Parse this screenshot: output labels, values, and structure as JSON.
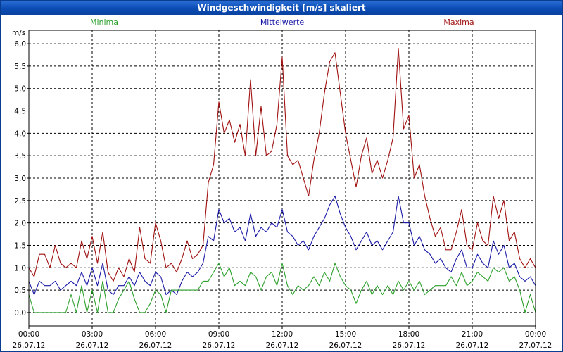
{
  "window": {
    "title": "Windgeschwindigkeit [m/s] skaliert"
  },
  "chart_data": {
    "type": "line",
    "title": "Windgeschwindigkeit [m/s] skaliert",
    "ylabel": "m/s",
    "xlabel": "",
    "ylim": [
      -0.3,
      6.3
    ],
    "xlim": [
      0,
      24
    ],
    "grid": true,
    "y_ticks": [
      "0,0",
      "0,5",
      "1,0",
      "1,5",
      "2,0",
      "2,5",
      "3,0",
      "3,5",
      "4,0",
      "4,5",
      "5,0",
      "5,5",
      "6,0"
    ],
    "y_tick_values": [
      0,
      0.5,
      1,
      1.5,
      2,
      2.5,
      3,
      3.5,
      4,
      4.5,
      5,
      5.5,
      6
    ],
    "x_ticks": [
      {
        "time": "00:00",
        "date": "26.07.12"
      },
      {
        "time": "03:00",
        "date": "26.07.12"
      },
      {
        "time": "06:00",
        "date": "26.07.12"
      },
      {
        "time": "09:00",
        "date": "26.07.12"
      },
      {
        "time": "12:00",
        "date": "26.07.12"
      },
      {
        "time": "15:00",
        "date": "26.07.12"
      },
      {
        "time": "18:00",
        "date": "26.07.12"
      },
      {
        "time": "21:00",
        "date": "26.07.12"
      },
      {
        "time": "00:00",
        "date": "27.07.12"
      }
    ],
    "x_tick_hours": [
      0,
      3,
      6,
      9,
      12,
      15,
      18,
      21,
      24
    ],
    "legend": [
      {
        "name": "Minima",
        "color": "#2ca02c"
      },
      {
        "name": "Mittelwerte",
        "color": "#1a1aa6"
      },
      {
        "name": "Maxima",
        "color": "#a01010"
      }
    ],
    "series": [
      {
        "name": "Maxima",
        "color": "#a01010",
        "points": [
          [
            0,
            1.0
          ],
          [
            0.25,
            0.8
          ],
          [
            0.5,
            1.3
          ],
          [
            0.75,
            1.3
          ],
          [
            1,
            1.0
          ],
          [
            1.25,
            1.5
          ],
          [
            1.5,
            1.1
          ],
          [
            1.75,
            1.0
          ],
          [
            2,
            1.1
          ],
          [
            2.25,
            1.0
          ],
          [
            2.5,
            1.6
          ],
          [
            2.75,
            1.2
          ],
          [
            3,
            1.7
          ],
          [
            3.25,
            1.1
          ],
          [
            3.5,
            1.8
          ],
          [
            3.75,
            0.9
          ],
          [
            4,
            0.7
          ],
          [
            4.25,
            1.0
          ],
          [
            4.5,
            0.8
          ],
          [
            4.75,
            1.2
          ],
          [
            5,
            0.9
          ],
          [
            5.25,
            1.9
          ],
          [
            5.5,
            1.2
          ],
          [
            5.75,
            1.1
          ],
          [
            6,
            2.0
          ],
          [
            6.25,
            1.6
          ],
          [
            6.5,
            1.0
          ],
          [
            6.75,
            1.1
          ],
          [
            7,
            0.9
          ],
          [
            7.25,
            1.2
          ],
          [
            7.5,
            1.6
          ],
          [
            7.75,
            1.2
          ],
          [
            8,
            1.3
          ],
          [
            8.25,
            1.5
          ],
          [
            8.5,
            2.9
          ],
          [
            8.75,
            3.3
          ],
          [
            9,
            4.7
          ],
          [
            9.25,
            4.0
          ],
          [
            9.5,
            4.3
          ],
          [
            9.75,
            3.8
          ],
          [
            10,
            4.2
          ],
          [
            10.25,
            3.5
          ],
          [
            10.5,
            5.2
          ],
          [
            10.75,
            3.5
          ],
          [
            11,
            4.6
          ],
          [
            11.25,
            3.5
          ],
          [
            11.5,
            3.6
          ],
          [
            11.75,
            4.2
          ],
          [
            12,
            5.7
          ],
          [
            12.25,
            3.5
          ],
          [
            12.5,
            3.3
          ],
          [
            12.75,
            3.4
          ],
          [
            13,
            3.0
          ],
          [
            13.25,
            2.6
          ],
          [
            13.5,
            3.4
          ],
          [
            13.75,
            4.0
          ],
          [
            14,
            4.9
          ],
          [
            14.25,
            5.6
          ],
          [
            14.5,
            5.8
          ],
          [
            14.75,
            4.9
          ],
          [
            15,
            4.0
          ],
          [
            15.25,
            3.4
          ],
          [
            15.5,
            2.8
          ],
          [
            15.75,
            3.5
          ],
          [
            16,
            3.9
          ],
          [
            16.25,
            3.1
          ],
          [
            16.5,
            3.4
          ],
          [
            16.75,
            3.0
          ],
          [
            17,
            3.4
          ],
          [
            17.25,
            3.9
          ],
          [
            17.5,
            5.9
          ],
          [
            17.75,
            4.1
          ],
          [
            18,
            4.4
          ],
          [
            18.25,
            3.0
          ],
          [
            18.5,
            3.3
          ],
          [
            18.75,
            2.6
          ],
          [
            19,
            2.1
          ],
          [
            19.25,
            1.7
          ],
          [
            19.5,
            1.9
          ],
          [
            19.75,
            1.4
          ],
          [
            20,
            1.4
          ],
          [
            20.25,
            1.8
          ],
          [
            20.5,
            2.3
          ],
          [
            20.75,
            1.5
          ],
          [
            21,
            1.4
          ],
          [
            21.25,
            2.0
          ],
          [
            21.5,
            1.6
          ],
          [
            21.75,
            1.5
          ],
          [
            22,
            2.6
          ],
          [
            22.25,
            2.1
          ],
          [
            22.5,
            2.5
          ],
          [
            22.75,
            1.6
          ],
          [
            23,
            1.8
          ],
          [
            23.25,
            1.2
          ],
          [
            23.5,
            1.0
          ],
          [
            23.75,
            1.2
          ],
          [
            24,
            1.0
          ]
        ]
      },
      {
        "name": "Mittelwerte",
        "color": "#1a1aa6",
        "points": [
          [
            0,
            0.7
          ],
          [
            0.25,
            0.4
          ],
          [
            0.5,
            0.7
          ],
          [
            0.75,
            0.6
          ],
          [
            1,
            0.6
          ],
          [
            1.25,
            0.7
          ],
          [
            1.5,
            0.5
          ],
          [
            1.75,
            0.6
          ],
          [
            2,
            0.7
          ],
          [
            2.25,
            0.6
          ],
          [
            2.5,
            0.9
          ],
          [
            2.75,
            0.6
          ],
          [
            3,
            1.0
          ],
          [
            3.25,
            0.6
          ],
          [
            3.5,
            1.1
          ],
          [
            3.75,
            0.5
          ],
          [
            4,
            0.4
          ],
          [
            4.25,
            0.6
          ],
          [
            4.5,
            0.6
          ],
          [
            4.75,
            0.8
          ],
          [
            5,
            0.6
          ],
          [
            5.25,
            0.9
          ],
          [
            5.5,
            0.7
          ],
          [
            5.75,
            0.6
          ],
          [
            6,
            0.9
          ],
          [
            6.25,
            0.8
          ],
          [
            6.5,
            0.4
          ],
          [
            6.75,
            0.5
          ],
          [
            7,
            0.4
          ],
          [
            7.25,
            0.7
          ],
          [
            7.5,
            0.9
          ],
          [
            7.75,
            0.8
          ],
          [
            8,
            0.9
          ],
          [
            8.25,
            1.1
          ],
          [
            8.5,
            1.7
          ],
          [
            8.75,
            1.6
          ],
          [
            9,
            2.3
          ],
          [
            9.25,
            2.0
          ],
          [
            9.5,
            2.1
          ],
          [
            9.75,
            1.8
          ],
          [
            10,
            1.9
          ],
          [
            10.25,
            1.6
          ],
          [
            10.5,
            2.2
          ],
          [
            10.75,
            1.7
          ],
          [
            11,
            1.9
          ],
          [
            11.25,
            1.8
          ],
          [
            11.5,
            2.0
          ],
          [
            11.75,
            1.9
          ],
          [
            12,
            2.3
          ],
          [
            12.25,
            1.8
          ],
          [
            12.5,
            1.7
          ],
          [
            12.75,
            1.5
          ],
          [
            13,
            1.6
          ],
          [
            13.25,
            1.4
          ],
          [
            13.5,
            1.7
          ],
          [
            13.75,
            1.9
          ],
          [
            14,
            2.1
          ],
          [
            14.25,
            2.4
          ],
          [
            14.5,
            2.6
          ],
          [
            14.75,
            2.2
          ],
          [
            15,
            1.9
          ],
          [
            15.25,
            1.7
          ],
          [
            15.5,
            1.4
          ],
          [
            15.75,
            1.6
          ],
          [
            16,
            1.8
          ],
          [
            16.25,
            1.5
          ],
          [
            16.5,
            1.6
          ],
          [
            16.75,
            1.4
          ],
          [
            17,
            1.6
          ],
          [
            17.25,
            1.8
          ],
          [
            17.5,
            2.6
          ],
          [
            17.75,
            2.0
          ],
          [
            18,
            2.0
          ],
          [
            18.25,
            1.5
          ],
          [
            18.5,
            1.7
          ],
          [
            18.75,
            1.4
          ],
          [
            19,
            1.3
          ],
          [
            19.25,
            1.1
          ],
          [
            19.5,
            1.2
          ],
          [
            19.75,
            1.0
          ],
          [
            20,
            0.9
          ],
          [
            20.25,
            1.2
          ],
          [
            20.5,
            1.4
          ],
          [
            20.75,
            1.0
          ],
          [
            21,
            1.0
          ],
          [
            21.25,
            1.3
          ],
          [
            21.5,
            1.1
          ],
          [
            21.75,
            1.0
          ],
          [
            22,
            1.6
          ],
          [
            22.25,
            1.3
          ],
          [
            22.5,
            1.5
          ],
          [
            22.75,
            1.0
          ],
          [
            23,
            1.1
          ],
          [
            23.25,
            0.8
          ],
          [
            23.5,
            0.7
          ],
          [
            23.75,
            0.8
          ],
          [
            24,
            0.6
          ]
        ]
      },
      {
        "name": "Minima",
        "color": "#2ca02c",
        "points": [
          [
            0,
            0.4
          ],
          [
            0.25,
            0.0
          ],
          [
            0.5,
            0.0
          ],
          [
            0.75,
            0.0
          ],
          [
            1,
            0.0
          ],
          [
            1.25,
            0.0
          ],
          [
            1.5,
            0.0
          ],
          [
            1.75,
            0.0
          ],
          [
            2,
            0.4
          ],
          [
            2.25,
            0.0
          ],
          [
            2.5,
            0.6
          ],
          [
            2.75,
            0.0
          ],
          [
            3,
            0.5
          ],
          [
            3.25,
            0.0
          ],
          [
            3.5,
            0.7
          ],
          [
            3.75,
            0.0
          ],
          [
            4,
            0.0
          ],
          [
            4.25,
            0.3
          ],
          [
            4.5,
            0.5
          ],
          [
            4.75,
            0.7
          ],
          [
            5,
            0.3
          ],
          [
            5.25,
            0.0
          ],
          [
            5.5,
            0.0
          ],
          [
            5.75,
            0.2
          ],
          [
            6,
            0.5
          ],
          [
            6.25,
            0.4
          ],
          [
            6.5,
            0.0
          ],
          [
            6.75,
            0.5
          ],
          [
            7,
            0.5
          ],
          [
            7.25,
            0.5
          ],
          [
            7.5,
            0.5
          ],
          [
            7.75,
            0.5
          ],
          [
            8,
            0.5
          ],
          [
            8.25,
            0.7
          ],
          [
            8.5,
            0.7
          ],
          [
            8.75,
            0.9
          ],
          [
            9,
            1.1
          ],
          [
            9.25,
            0.8
          ],
          [
            9.5,
            1.0
          ],
          [
            9.75,
            0.6
          ],
          [
            10,
            0.7
          ],
          [
            10.25,
            0.6
          ],
          [
            10.5,
            0.9
          ],
          [
            10.75,
            0.8
          ],
          [
            11,
            0.5
          ],
          [
            11.25,
            0.8
          ],
          [
            11.5,
            0.9
          ],
          [
            11.75,
            0.6
          ],
          [
            12,
            1.1
          ],
          [
            12.25,
            0.6
          ],
          [
            12.5,
            0.4
          ],
          [
            12.75,
            0.6
          ],
          [
            13,
            0.5
          ],
          [
            13.25,
            0.6
          ],
          [
            13.5,
            0.8
          ],
          [
            13.75,
            0.6
          ],
          [
            14,
            0.9
          ],
          [
            14.25,
            0.7
          ],
          [
            14.5,
            1.1
          ],
          [
            14.75,
            0.8
          ],
          [
            15,
            0.6
          ],
          [
            15.25,
            0.5
          ],
          [
            15.5,
            0.2
          ],
          [
            15.75,
            0.5
          ],
          [
            16,
            0.7
          ],
          [
            16.25,
            0.4
          ],
          [
            16.5,
            0.6
          ],
          [
            16.75,
            0.4
          ],
          [
            17,
            0.6
          ],
          [
            17.25,
            0.4
          ],
          [
            17.5,
            0.7
          ],
          [
            17.75,
            0.5
          ],
          [
            18,
            0.7
          ],
          [
            18.25,
            0.5
          ],
          [
            18.5,
            0.7
          ],
          [
            18.75,
            0.4
          ],
          [
            19,
            0.5
          ],
          [
            19.25,
            0.6
          ],
          [
            19.5,
            0.6
          ],
          [
            19.75,
            0.6
          ],
          [
            20,
            0.8
          ],
          [
            20.25,
            0.6
          ],
          [
            20.5,
            0.9
          ],
          [
            20.75,
            0.6
          ],
          [
            21,
            0.7
          ],
          [
            21.25,
            0.9
          ],
          [
            21.5,
            0.8
          ],
          [
            21.75,
            0.7
          ],
          [
            22,
            1.0
          ],
          [
            22.25,
            0.9
          ],
          [
            22.5,
            1.0
          ],
          [
            22.75,
            0.7
          ],
          [
            23,
            0.8
          ],
          [
            23.25,
            0.5
          ],
          [
            23.5,
            0.0
          ],
          [
            23.75,
            0.4
          ],
          [
            24,
            0.0
          ]
        ]
      }
    ]
  }
}
